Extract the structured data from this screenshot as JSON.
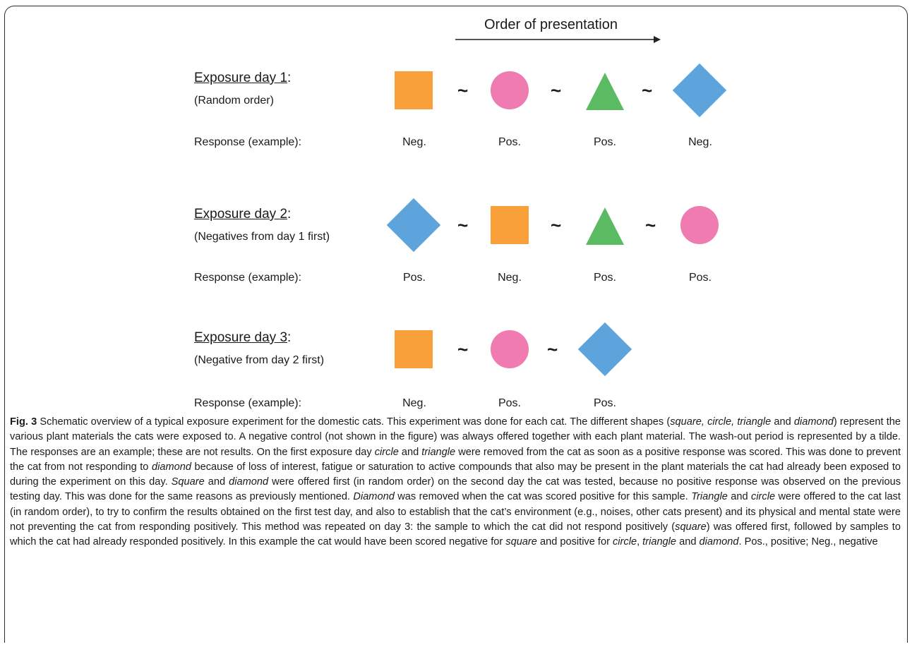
{
  "header": {
    "order_label": "Order of presentation"
  },
  "rows": [
    {
      "title": "Exposure day 1",
      "title_suffix": ":",
      "subtitle": "(Random order)",
      "response_label": "Response (example):",
      "tilde": "~",
      "shapes": [
        "square",
        "circle",
        "triangle",
        "diamond"
      ],
      "responses": [
        "Neg.",
        "Pos.",
        "Pos.",
        "Neg."
      ]
    },
    {
      "title": "Exposure day 2",
      "title_suffix": ":",
      "subtitle": "(Negatives from day 1 first)",
      "response_label": "Response (example):",
      "tilde": "~",
      "shapes": [
        "diamond",
        "square",
        "triangle",
        "circle"
      ],
      "responses": [
        "Pos.",
        "Neg.",
        "Pos.",
        "Pos."
      ]
    },
    {
      "title": "Exposure day 3",
      "title_suffix": ":",
      "subtitle": "(Negative from day 2 first)",
      "response_label": "Response (example):",
      "tilde": "~",
      "shapes": [
        "square",
        "circle",
        "diamond"
      ],
      "responses": [
        "Neg.",
        "Pos.",
        "Pos."
      ]
    }
  ],
  "colors": {
    "square": "#f9a03a",
    "circle": "#ef7bb1",
    "triangle": "#5bbb63",
    "diamond": "#5da3dc"
  },
  "caption": {
    "fig_label": "Fig. 3",
    "segments": [
      {
        "t": " Schematic overview of a typical exposure experiment for the domestic cats. This experiment was done for each cat. The different shapes ("
      },
      {
        "t": "square, circle, triangle",
        "i": true
      },
      {
        "t": " and "
      },
      {
        "t": "diamond",
        "i": true
      },
      {
        "t": ") represent the various plant materials the cats were exposed to. A negative control (not shown in the figure) was always offered together with each plant material. The wash-out period is represented by a tilde. The responses are an example; these are not results. On the first exposure day "
      },
      {
        "t": "circle",
        "i": true
      },
      {
        "t": " and "
      },
      {
        "t": "triangle",
        "i": true
      },
      {
        "t": " were removed from the cat as soon as a positive response was scored. This was done to prevent the cat from not responding to "
      },
      {
        "t": "diamond",
        "i": true
      },
      {
        "t": " because of loss of interest, fatigue or saturation to active compounds that also may be present in the plant materials the cat had already been exposed to during the experiment on this day. "
      },
      {
        "t": "Square",
        "i": true
      },
      {
        "t": " and "
      },
      {
        "t": "diamond",
        "i": true
      },
      {
        "t": " were offered first (in random order) on the second day the cat was tested, because no positive response was observed on the previous testing day. This was done for the same reasons as previously mentioned. "
      },
      {
        "t": "Diamond",
        "i": true
      },
      {
        "t": " was removed when the cat was scored positive for this sample. "
      },
      {
        "t": "Triangle",
        "i": true
      },
      {
        "t": " and "
      },
      {
        "t": "circle",
        "i": true
      },
      {
        "t": " were offered to the cat last (in random order), to try to confirm the results obtained on the first test day, and also to establish that the cat’s environment (e.g., noises, other cats present) and its physical and mental state were not preventing the cat from responding positively. This method was repeated on day 3: the sample to which the cat did not respond positively ("
      },
      {
        "t": "square",
        "i": true
      },
      {
        "t": ") was offered first, followed by samples to which the cat had already responded positively. In this example the cat would have been scored negative for "
      },
      {
        "t": "square",
        "i": true
      },
      {
        "t": " and positive for "
      },
      {
        "t": "circle",
        "i": true
      },
      {
        "t": ", "
      },
      {
        "t": "triangle",
        "i": true
      },
      {
        "t": " and "
      },
      {
        "t": "diamond",
        "i": true
      },
      {
        "t": ". Pos., positive; Neg., negative"
      }
    ]
  }
}
